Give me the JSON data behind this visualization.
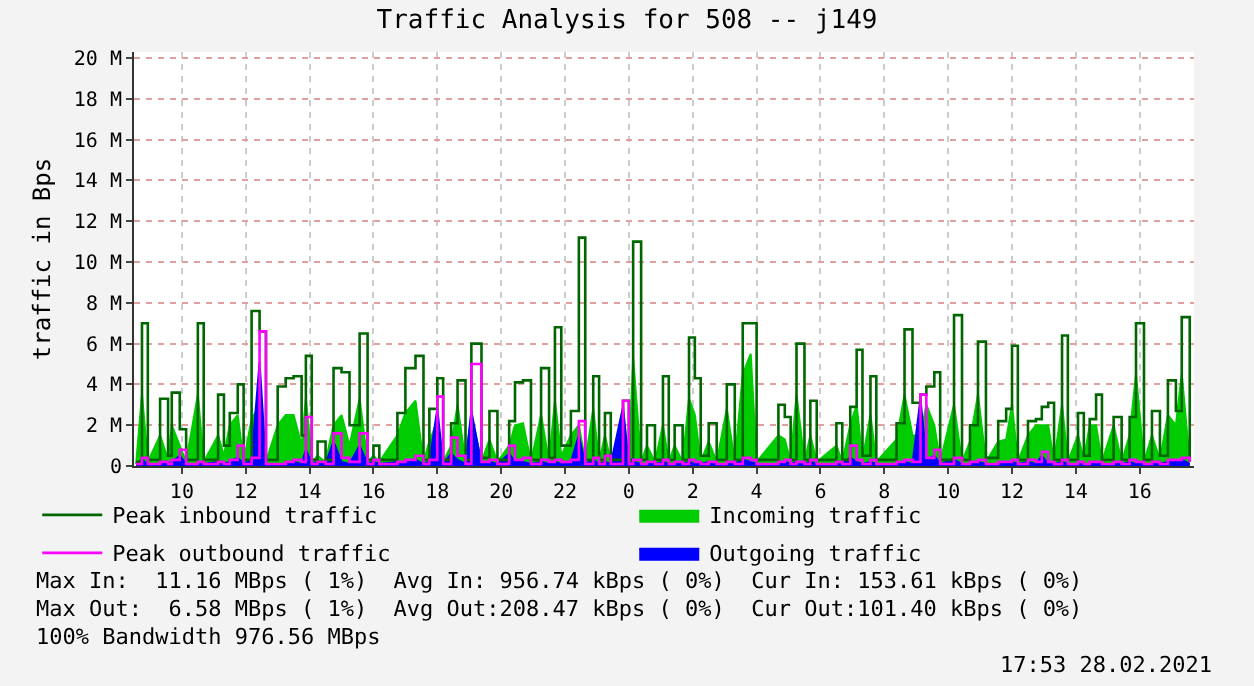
{
  "chart_data": {
    "type": "step",
    "title": "Traffic Analysis for 508 -- j149",
    "ylabel": "traffic in Bps",
    "x": [
      "2021-02-27T08:34",
      "2021-02-27T08:45",
      "2021-02-27T08:56",
      "2021-02-27T09:19",
      "2021-02-27T09:34",
      "2021-02-27T09:41",
      "2021-02-27T09:56",
      "2021-02-27T10:08",
      "2021-02-27T10:30",
      "2021-02-27T10:41",
      "2021-02-27T11:08",
      "2021-02-27T11:19",
      "2021-02-27T11:30",
      "2021-02-27T11:45",
      "2021-02-27T11:56",
      "2021-02-27T12:11",
      "2021-02-27T12:26",
      "2021-02-27T12:38",
      "2021-02-27T13:00",
      "2021-02-27T13:15",
      "2021-02-27T13:30",
      "2021-02-27T13:45",
      "2021-02-27T13:53",
      "2021-02-27T14:04",
      "2021-02-27T14:15",
      "2021-02-27T14:30",
      "2021-02-27T14:45",
      "2021-02-27T15:00",
      "2021-02-27T15:15",
      "2021-02-27T15:34",
      "2021-02-27T15:49",
      "2021-02-27T16:00",
      "2021-02-27T16:11",
      "2021-02-27T16:45",
      "2021-02-27T17:00",
      "2021-02-27T17:19",
      "2021-02-27T17:34",
      "2021-02-27T17:45",
      "2021-02-27T18:00",
      "2021-02-27T18:11",
      "2021-02-27T18:26",
      "2021-02-27T18:38",
      "2021-02-27T18:53",
      "2021-02-27T19:04",
      "2021-02-27T19:23",
      "2021-02-27T19:38",
      "2021-02-27T19:53",
      "2021-02-27T20:15",
      "2021-02-27T20:26",
      "2021-02-27T20:41",
      "2021-02-27T20:56",
      "2021-02-27T21:15",
      "2021-02-27T21:30",
      "2021-02-27T21:41",
      "2021-02-27T21:53",
      "2021-02-27T22:11",
      "2021-02-27T22:26",
      "2021-02-27T22:38",
      "2021-02-27T22:53",
      "2021-02-27T23:04",
      "2021-02-27T23:15",
      "2021-02-27T23:26",
      "2021-02-27T23:49",
      "2021-02-28T00:00",
      "2021-02-28T00:08",
      "2021-02-28T00:23",
      "2021-02-28T00:34",
      "2021-02-28T00:49",
      "2021-02-28T01:04",
      "2021-02-28T01:15",
      "2021-02-28T01:26",
      "2021-02-28T01:41",
      "2021-02-28T01:53",
      "2021-02-28T02:04",
      "2021-02-28T02:15",
      "2021-02-28T02:30",
      "2021-02-28T02:45",
      "2021-02-28T03:04",
      "2021-02-28T03:19",
      "2021-02-28T03:34",
      "2021-02-28T03:49",
      "2021-02-28T04:00",
      "2021-02-28T04:41",
      "2021-02-28T04:53",
      "2021-02-28T05:04",
      "2021-02-28T05:15",
      "2021-02-28T05:30",
      "2021-02-28T05:41",
      "2021-02-28T05:53",
      "2021-02-28T06:30",
      "2021-02-28T06:41",
      "2021-02-28T06:56",
      "2021-02-28T07:08",
      "2021-02-28T07:19",
      "2021-02-28T07:34",
      "2021-02-28T07:45",
      "2021-02-28T08:23",
      "2021-02-28T08:38",
      "2021-02-28T08:53",
      "2021-02-28T09:08",
      "2021-02-28T09:19",
      "2021-02-28T09:34",
      "2021-02-28T09:45",
      "2021-02-28T10:11",
      "2021-02-28T10:26",
      "2021-02-28T10:41",
      "2021-02-28T10:56",
      "2021-02-28T11:11",
      "2021-02-28T11:34",
      "2021-02-28T11:49",
      "2021-02-28T12:00",
      "2021-02-28T12:11",
      "2021-02-28T12:30",
      "2021-02-28T12:45",
      "2021-02-28T12:56",
      "2021-02-28T13:08",
      "2021-02-28T13:19",
      "2021-02-28T13:34",
      "2021-02-28T13:45",
      "2021-02-28T14:04",
      "2021-02-28T14:15",
      "2021-02-28T14:26",
      "2021-02-28T14:38",
      "2021-02-28T14:49",
      "2021-02-28T15:11",
      "2021-02-28T15:26",
      "2021-02-28T15:41",
      "2021-02-28T15:53",
      "2021-02-28T16:08",
      "2021-02-28T16:23",
      "2021-02-28T16:38",
      "2021-02-28T16:53",
      "2021-02-28T17:08",
      "2021-02-28T17:19",
      "2021-02-28T17:34"
    ],
    "series": [
      {
        "name": "Peak inbound traffic",
        "color": "#006600",
        "values": [
          0.2,
          7,
          0.3,
          3.3,
          0.5,
          3.6,
          1.8,
          0.3,
          7,
          0.3,
          3.5,
          1,
          2.6,
          4,
          0.3,
          7.6,
          6.6,
          0.3,
          3.9,
          4.3,
          4.4,
          1.5,
          5.4,
          0.3,
          1.2,
          0.3,
          4.8,
          4.6,
          2,
          6.5,
          0.3,
          1,
          0.3,
          2.6,
          4.8,
          5.4,
          0.3,
          2.8,
          4.3,
          0.3,
          2.1,
          4.2,
          0.3,
          6,
          0.4,
          2.7,
          0.3,
          2.2,
          4.1,
          4.2,
          0.3,
          4.8,
          0.4,
          6.8,
          1,
          2.7,
          11.2,
          0.3,
          4.4,
          0.3,
          2.6,
          0.3,
          3.2,
          0.3,
          11,
          0.3,
          2,
          0.3,
          4.4,
          0.3,
          2,
          0.3,
          6.3,
          4.3,
          0.5,
          2.1,
          0.3,
          4,
          0.3,
          7,
          7,
          0.3,
          3,
          2.4,
          0.3,
          6,
          0.3,
          3.2,
          0.3,
          2.1,
          0.3,
          2.9,
          5.7,
          0.5,
          4.4,
          0.3,
          2.1,
          6.7,
          3.1,
          3.5,
          3.9,
          4.6,
          0.3,
          7.4,
          0.3,
          2,
          6.1,
          0.4,
          2.2,
          2.8,
          5.9,
          0.3,
          2.2,
          2.3,
          2.9,
          3.1,
          0.3,
          6.4,
          0.3,
          2.6,
          0.5,
          2.3,
          3.5,
          0.3,
          2.4,
          0.3,
          2.4,
          7,
          0.3,
          2.7,
          0.5,
          4.2,
          2.7,
          7.3,
          0.2
        ]
      },
      {
        "name": "Incoming traffic",
        "type": "area",
        "color": "#00cc00",
        "values": [
          0.1,
          3.5,
          0.2,
          1.5,
          0.3,
          2,
          1,
          0.2,
          3.5,
          0.2,
          1.5,
          0.5,
          2,
          2.5,
          0.2,
          2.3,
          3,
          0.2,
          2,
          2.5,
          2.5,
          1,
          3.3,
          0.2,
          0.5,
          0.2,
          2,
          2.5,
          1,
          3.3,
          0.2,
          0.5,
          0.2,
          1.5,
          2.6,
          3.2,
          0.2,
          1.2,
          2.2,
          0.2,
          1,
          3,
          0.2,
          2.5,
          0.2,
          1.3,
          0.2,
          1,
          2,
          2.1,
          0.2,
          2.5,
          0.2,
          3.2,
          0.5,
          1.5,
          2,
          0.2,
          2.8,
          0.2,
          1.5,
          0.2,
          1,
          0.2,
          5.3,
          0.2,
          1,
          0.2,
          2,
          0.2,
          1,
          0.2,
          3.3,
          2.5,
          0.2,
          1.2,
          0.2,
          2.8,
          0.2,
          4.5,
          5.5,
          0.2,
          1.5,
          1.3,
          0.2,
          3.5,
          0.2,
          1.5,
          0.2,
          1,
          0.2,
          2,
          3,
          0.3,
          2.5,
          0.2,
          1.3,
          3.5,
          1.5,
          1.5,
          3,
          2,
          0.2,
          3,
          0.2,
          1.2,
          3.5,
          0.2,
          1.2,
          1.3,
          3,
          0.2,
          1.5,
          2,
          2,
          2,
          0.2,
          3,
          0.2,
          1.5,
          0.3,
          2,
          2,
          0.2,
          2,
          0.2,
          1.5,
          4.5,
          0.2,
          1.5,
          0.3,
          2.5,
          2,
          4.5,
          0.2
        ]
      },
      {
        "name": "Peak outbound traffic",
        "color": "#ff00ff",
        "values": [
          0.1,
          0.4,
          0.1,
          0.2,
          0.1,
          0.3,
          0.8,
          0.1,
          0.2,
          0.1,
          0.2,
          0.1,
          0.3,
          1,
          0.1,
          0.4,
          6.6,
          0.1,
          0.1,
          0.2,
          0.3,
          0.2,
          2.4,
          0.1,
          0.2,
          0.1,
          1.6,
          0.4,
          0.2,
          1.6,
          0.1,
          0.3,
          0.1,
          0.2,
          0.3,
          0.5,
          0.1,
          0.3,
          3.4,
          0.1,
          1.4,
          0.5,
          0.1,
          5,
          0.2,
          0.3,
          0.1,
          1,
          0.3,
          0.4,
          0.1,
          0.3,
          0.2,
          0.3,
          0.2,
          0.3,
          2.2,
          0.1,
          0.4,
          0.1,
          0.5,
          0.1,
          3.2,
          0.1,
          0.3,
          0.1,
          0.2,
          0.1,
          0.3,
          0.1,
          0.2,
          0.1,
          0.3,
          0.2,
          0.1,
          0.2,
          0.1,
          0.2,
          0.1,
          0.4,
          0.3,
          0.1,
          0.2,
          0.3,
          0.1,
          0.2,
          0.1,
          0.3,
          0.1,
          0.2,
          0.1,
          1,
          0.3,
          0.1,
          0.3,
          0.1,
          0.2,
          0.3,
          0.2,
          3.5,
          0.4,
          0.8,
          0.1,
          0.4,
          0.1,
          0.2,
          0.3,
          0.1,
          0.2,
          0.2,
          0.3,
          0.1,
          0.3,
          0.2,
          0.7,
          0.2,
          0.1,
          0.3,
          0.1,
          0.2,
          0.1,
          0.2,
          0.2,
          0.1,
          0.2,
          0.1,
          0.3,
          0.2,
          0.1,
          0.2,
          0.1,
          0.3,
          0.3,
          0.4,
          0.2
        ]
      },
      {
        "name": "Outgoing traffic",
        "type": "area",
        "color": "#0000ff",
        "values": [
          0.1,
          0.3,
          0.1,
          0.1,
          0.1,
          0.2,
          0.5,
          0.1,
          0.1,
          0.1,
          0.2,
          0.1,
          0.2,
          0.4,
          0.1,
          0.3,
          5.1,
          0.1,
          0.1,
          0.1,
          0.2,
          0.1,
          0.8,
          0.1,
          0.2,
          0.1,
          1.2,
          0.2,
          0.1,
          1,
          0.1,
          0.2,
          0.1,
          0.2,
          0.2,
          0.3,
          0.1,
          0.2,
          2.8,
          0.1,
          0.6,
          0.3,
          0.1,
          2.7,
          0.1,
          0.2,
          0.1,
          0.6,
          0.2,
          0.2,
          0.1,
          0.2,
          0.1,
          0.2,
          0.1,
          0.2,
          1.5,
          0.1,
          0.3,
          0.1,
          0.2,
          0.1,
          2.9,
          0.1,
          0.2,
          0.1,
          0.1,
          0.1,
          0.2,
          0.1,
          0.1,
          0.1,
          0.2,
          0.1,
          0.1,
          0.2,
          0.1,
          0.1,
          0.1,
          0.3,
          0.2,
          0.1,
          0.1,
          0.2,
          0.1,
          0.2,
          0.1,
          0.2,
          0.1,
          0.1,
          0.1,
          0.4,
          0.2,
          0.1,
          0.2,
          0.1,
          0.1,
          0.2,
          0.1,
          3.3,
          0.3,
          0.5,
          0.1,
          0.3,
          0.1,
          0.1,
          0.2,
          0.1,
          0.1,
          0.1,
          0.2,
          0.1,
          0.2,
          0.1,
          0.5,
          0.1,
          0.1,
          0.2,
          0.1,
          0.1,
          0.1,
          0.1,
          0.1,
          0.1,
          0.1,
          0.1,
          0.2,
          0.1,
          0.1,
          0.1,
          0.1,
          0.2,
          0.2,
          0.3,
          0.1
        ]
      }
    ],
    "xlim": [
      "2021-02-27T08:30",
      "2021-02-28T17:42"
    ],
    "xticks": [
      {
        "value": "2021-02-27T10:00",
        "label": "10"
      },
      {
        "value": "2021-02-27T12:00",
        "label": "12"
      },
      {
        "value": "2021-02-27T14:00",
        "label": "14"
      },
      {
        "value": "2021-02-27T16:00",
        "label": "16"
      },
      {
        "value": "2021-02-27T18:00",
        "label": "18"
      },
      {
        "value": "2021-02-27T20:00",
        "label": "20"
      },
      {
        "value": "2021-02-27T22:00",
        "label": "22"
      },
      {
        "value": "2021-02-28T00:00",
        "label": "0"
      },
      {
        "value": "2021-02-28T02:00",
        "label": "2"
      },
      {
        "value": "2021-02-28T04:00",
        "label": "4"
      },
      {
        "value": "2021-02-28T06:00",
        "label": "6"
      },
      {
        "value": "2021-02-28T08:00",
        "label": "8"
      },
      {
        "value": "2021-02-28T10:00",
        "label": "10"
      },
      {
        "value": "2021-02-28T12:00",
        "label": "12"
      },
      {
        "value": "2021-02-28T14:00",
        "label": "14"
      },
      {
        "value": "2021-02-28T16:00",
        "label": "16"
      }
    ],
    "ylim": [
      0,
      20.3
    ],
    "yticks": [
      0,
      {
        "value": 2,
        "label": "2 M"
      },
      {
        "value": 4,
        "label": "4 M"
      },
      {
        "value": 6,
        "label": "6 M"
      },
      {
        "value": 8,
        "label": "8 M"
      },
      {
        "value": 10,
        "label": "10 M"
      },
      {
        "value": 12,
        "label": "12 M"
      },
      {
        "value": 14,
        "label": "14 M"
      },
      {
        "value": 16,
        "label": "16 M"
      },
      {
        "value": 18,
        "label": "18 M"
      },
      {
        "value": 20,
        "label": "20 M"
      }
    ],
    "grid": true,
    "legend": "bottom",
    "annotations": [
      "Max In:  11.16 MBps ( 1%)  Avg In: 956.74 kBps ( 0%)  Cur In: 153.61 kBps ( 0%)",
      "Max Out:  6.58 MBps ( 1%)  Avg Out:208.47 kBps ( 0%)  Cur Out:101.40 kBps ( 0%)",
      "100% Bandwidth 976.56 MBps",
      "17:53 28.02.2021"
    ]
  }
}
